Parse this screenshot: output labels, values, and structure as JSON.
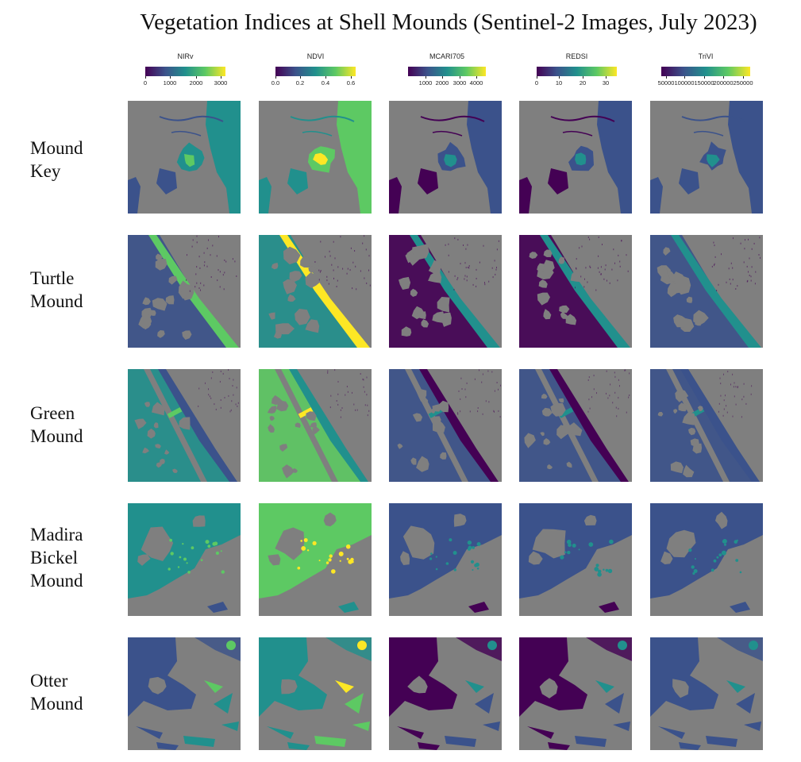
{
  "title": "Vegetation Indices at Shell Mounds (Sentinel-2 Images, July 2023)",
  "colors": {
    "background": "#7f7f7f",
    "viridis": [
      "#440154",
      "#3b528b",
      "#21908d",
      "#5dc963",
      "#fde725"
    ]
  },
  "legends": [
    {
      "name": "NIRv",
      "ticks": [
        "0",
        "1000",
        "2000",
        "3000"
      ]
    },
    {
      "name": "NDVI",
      "ticks": [
        "0.0",
        "0.2",
        "0.4",
        "0.6"
      ]
    },
    {
      "name": "MCARI705",
      "ticks": [
        "1000",
        "2000",
        "3000",
        "4000"
      ]
    },
    {
      "name": "REDSI",
      "ticks": [
        "0",
        "10",
        "20",
        "30"
      ]
    },
    {
      "name": "TriVI",
      "ticks": [
        "50000",
        "100000",
        "150000",
        "200000",
        "250000"
      ]
    }
  ],
  "rows": [
    {
      "lines": [
        "Mound",
        "Key"
      ]
    },
    {
      "lines": [
        "Turtle",
        "Mound"
      ]
    },
    {
      "lines": [
        "Green",
        "Mound"
      ]
    },
    {
      "lines": [
        "Madira",
        "Bickel",
        "Mound"
      ]
    },
    {
      "lines": [
        "Otter",
        "Mound"
      ]
    }
  ]
}
